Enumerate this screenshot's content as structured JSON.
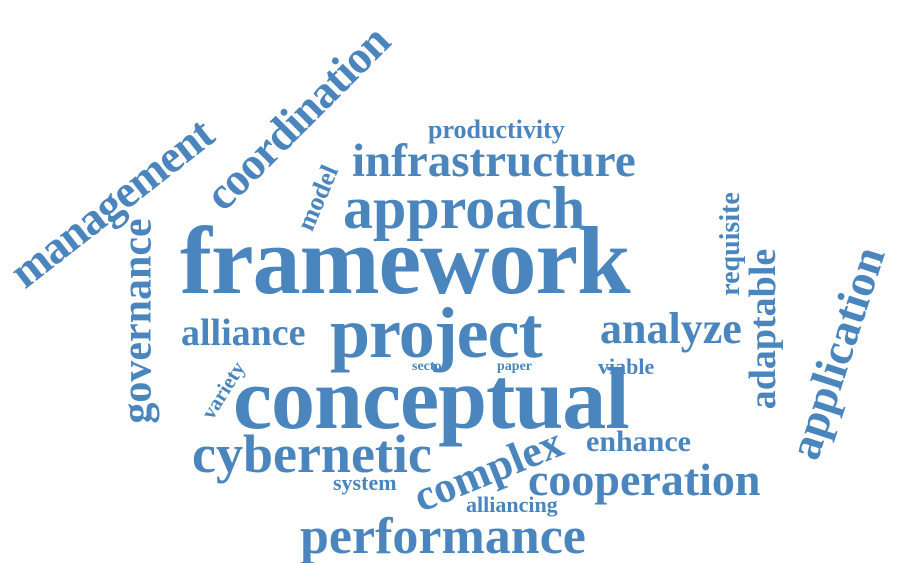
{
  "cloud": {
    "color": "#4a86bd",
    "words": {
      "framework": "framework",
      "project": "project",
      "conceptual": "conceptual",
      "approach": "approach",
      "infrastructure": "infrastructure",
      "management": "management",
      "coordination": "coordination",
      "governance": "governance",
      "cybernetic": "cybernetic",
      "performance": "performance",
      "cooperation": "cooperation",
      "complex": "complex",
      "alliance": "alliance",
      "analyze": "analyze",
      "application": "application",
      "adaptable": "adaptable",
      "enhance": "enhance",
      "requisite": "requisite",
      "productivity": "productivity",
      "model": "model",
      "variety": "variety",
      "system": "system",
      "alliancing": "alliancing",
      "viable": "viable",
      "sector": "sector",
      "paper": "paper"
    }
  }
}
